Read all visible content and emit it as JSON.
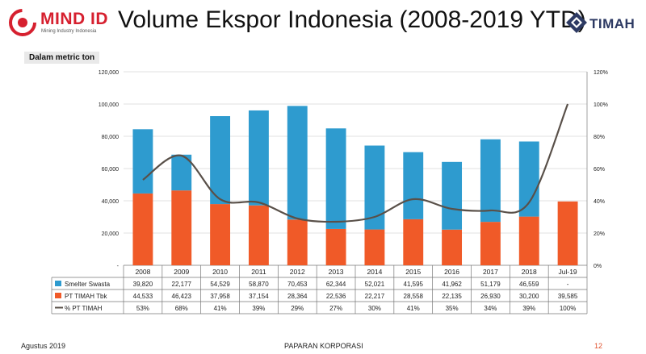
{
  "header": {
    "logo_left_text": "MIND ID",
    "logo_left_sub": "Mining Industry Indonesia",
    "title": "Volume Ekspor Indonesia (2008-2019 YTD)",
    "logo_right_text": "TIMAH"
  },
  "unit_label": "Dalam metric ton",
  "colors": {
    "smelter": "#2e9bcf",
    "timah": "#f05a28",
    "line": "#595049",
    "grid": "#d9d9d9",
    "footer_accent": "#e0502c"
  },
  "chart_data": {
    "type": "bar",
    "stacked": true,
    "categories": [
      "2008",
      "2009",
      "2010",
      "2011",
      "2012",
      "2013",
      "2014",
      "2015",
      "2016",
      "2017",
      "2018",
      "Jul-19"
    ],
    "y_left": {
      "ylim": [
        0,
        120000
      ],
      "ticks": [
        "-",
        "20,000",
        "40,000",
        "60,000",
        "80,000",
        "100,000",
        "120,000"
      ]
    },
    "y_right": {
      "ylim": [
        0,
        120
      ],
      "ticks": [
        "0%",
        "20%",
        "40%",
        "60%",
        "80%",
        "100%",
        "120%"
      ]
    },
    "series": [
      {
        "name": "Smelter Swasta",
        "type": "bar",
        "values": [
          39820,
          22177,
          54529,
          58870,
          70453,
          62344,
          52021,
          41595,
          41962,
          51179,
          46559,
          0
        ],
        "labels": [
          "39,820",
          "22,177",
          "54,529",
          "58,870",
          "70,453",
          "62,344",
          "52,021",
          "41,595",
          "41,962",
          "51,179",
          "46,559",
          "-"
        ]
      },
      {
        "name": "PT TIMAH Tbk",
        "type": "bar",
        "values": [
          44533,
          46423,
          37958,
          37154,
          28364,
          22536,
          22217,
          28558,
          22135,
          26930,
          30200,
          39585
        ],
        "labels": [
          "44,533",
          "46,423",
          "37,958",
          "37,154",
          "28,364",
          "22,536",
          "22,217",
          "28,558",
          "22,135",
          "26,930",
          "30,200",
          "39,585"
        ]
      },
      {
        "name": "% PT TIMAH",
        "type": "line",
        "axis": "right",
        "values": [
          53,
          68,
          41,
          39,
          29,
          27,
          30,
          41,
          35,
          34,
          39,
          100
        ],
        "labels": [
          "53%",
          "68%",
          "41%",
          "39%",
          "29%",
          "27%",
          "30%",
          "41%",
          "35%",
          "34%",
          "39%",
          "100%"
        ]
      }
    ],
    "grid": "horizontal",
    "legend": "data-table"
  },
  "footer": {
    "left": "Agustus 2019",
    "middle": "PAPARAN KORPORASI",
    "page_number": "12"
  }
}
